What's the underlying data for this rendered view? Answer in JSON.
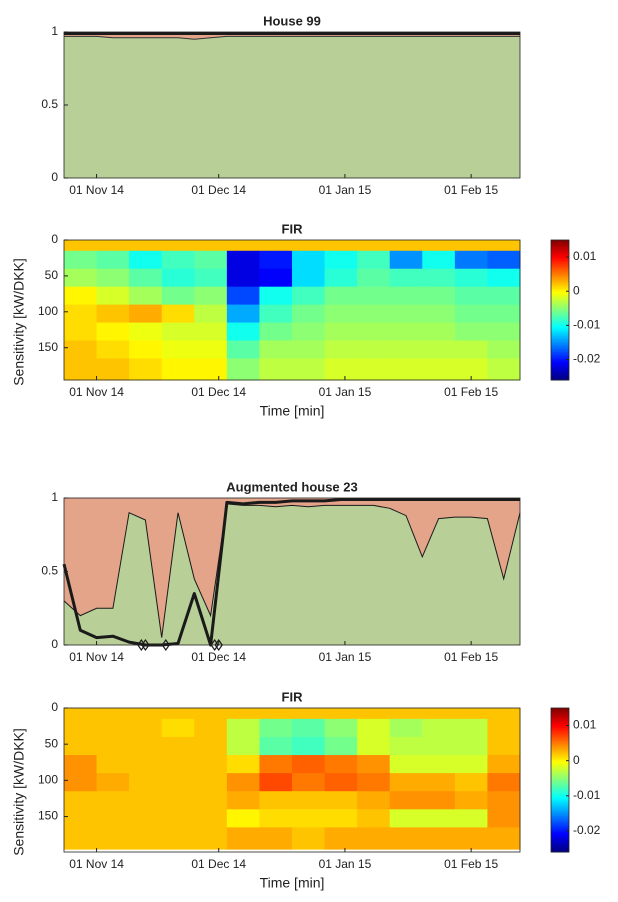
{
  "chart_data": [
    {
      "type": "area",
      "title": "House 99",
      "x": [
        "2014-10-24",
        "2014-10-28",
        "2014-11-01",
        "2014-11-05",
        "2014-11-09",
        "2014-11-13",
        "2014-11-17",
        "2014-11-21",
        "2014-11-25",
        "2014-11-29",
        "2014-12-03",
        "2014-12-07",
        "2014-12-11",
        "2014-12-15",
        "2014-12-19",
        "2014-12-23",
        "2014-12-27",
        "2014-12-31",
        "2015-01-04",
        "2015-01-08",
        "2015-01-12",
        "2015-01-16",
        "2015-01-20",
        "2015-01-24",
        "2015-01-28",
        "2015-02-01",
        "2015-02-05",
        "2015-02-09",
        "2015-02-13"
      ],
      "series": [
        {
          "style": "area",
          "color": "#e3a48a",
          "values": [
            1,
            1,
            1,
            1,
            1,
            1,
            1,
            1,
            1,
            1,
            1,
            1,
            1,
            1,
            1,
            1,
            1,
            1,
            1,
            1,
            1,
            1,
            1,
            1,
            1,
            1,
            1,
            1,
            1
          ]
        },
        {
          "style": "area",
          "color": "#b8cf98",
          "edgecolor": "#333333",
          "values": [
            0.97,
            0.97,
            0.97,
            0.96,
            0.96,
            0.96,
            0.96,
            0.96,
            0.95,
            0.96,
            0.97,
            0.97,
            0.97,
            0.97,
            0.97,
            0.97,
            0.97,
            0.97,
            0.97,
            0.97,
            0.97,
            0.97,
            0.97,
            0.97,
            0.97,
            0.97,
            0.97,
            0.97,
            0.97
          ]
        },
        {
          "style": "line",
          "color": "#1a1a1a",
          "width": 3,
          "values": [
            0.99,
            0.99,
            0.99,
            0.99,
            0.99,
            0.99,
            0.99,
            0.99,
            0.99,
            0.99,
            0.99,
            0.99,
            0.99,
            0.99,
            0.99,
            0.99,
            0.99,
            0.99,
            0.99,
            0.99,
            0.99,
            0.99,
            0.99,
            0.99,
            0.99,
            0.99,
            0.99,
            0.99,
            0.99
          ]
        }
      ],
      "xlim": [
        "2014-10-24",
        "2015-02-13"
      ],
      "xticks": [
        {
          "value": "2014-11-01",
          "label": "01 Nov 14"
        },
        {
          "value": "2014-12-01",
          "label": "01 Dec 14"
        },
        {
          "value": "2015-01-01",
          "label": "01 Jan 15"
        },
        {
          "value": "2015-02-01",
          "label": "01 Feb 15"
        }
      ],
      "ylim": [
        0,
        1
      ],
      "yticks": [
        0,
        0.5,
        1
      ]
    },
    {
      "type": "heatmap",
      "title": "FIR",
      "ylabel": "Sensitivity [kW/DKK]",
      "xlabel": "Time [min]",
      "colormap": "jet",
      "x": [
        "2014-10-24",
        "2014-11-01",
        "2014-11-09",
        "2014-11-17",
        "2014-11-25",
        "2014-12-03",
        "2014-12-11",
        "2014-12-19",
        "2014-12-27",
        "2015-01-04",
        "2015-01-12",
        "2015-01-20",
        "2015-01-28",
        "2015-02-05",
        "2015-02-13"
      ],
      "y": [
        0,
        15,
        40,
        65,
        90,
        115,
        140,
        165,
        195
      ],
      "z": [
        [
          0.002,
          0.002,
          0.002,
          0.002,
          0.002,
          0.002,
          0.002,
          0.002,
          0.002,
          0.002,
          0.002,
          0.002,
          0.002,
          0.002
        ],
        [
          -0.006,
          -0.007,
          -0.01,
          -0.008,
          -0.007,
          -0.022,
          -0.02,
          -0.012,
          -0.01,
          -0.008,
          -0.015,
          -0.01,
          -0.016,
          -0.017
        ],
        [
          -0.004,
          -0.005,
          -0.007,
          -0.009,
          -0.008,
          -0.022,
          -0.021,
          -0.012,
          -0.009,
          -0.007,
          -0.008,
          -0.008,
          -0.009,
          -0.01
        ],
        [
          0,
          -0.002,
          -0.004,
          -0.006,
          -0.005,
          -0.018,
          -0.01,
          -0.008,
          -0.006,
          -0.006,
          -0.006,
          -0.006,
          -0.007,
          -0.007
        ],
        [
          0.001,
          0.002,
          0.003,
          0.001,
          -0.003,
          -0.014,
          -0.008,
          -0.006,
          -0.005,
          -0.005,
          -0.005,
          -0.005,
          -0.006,
          -0.006
        ],
        [
          0.001,
          0,
          -0.001,
          -0.002,
          -0.002,
          -0.01,
          -0.006,
          -0.005,
          -0.004,
          -0.004,
          -0.004,
          -0.004,
          -0.005,
          -0.005
        ],
        [
          0.002,
          0.001,
          0,
          -0.001,
          -0.001,
          -0.007,
          -0.004,
          -0.004,
          -0.003,
          -0.003,
          -0.003,
          -0.003,
          -0.003,
          -0.004
        ],
        [
          0.002,
          0.002,
          0.001,
          0,
          0,
          -0.005,
          -0.003,
          -0.003,
          -0.002,
          -0.002,
          -0.002,
          -0.002,
          -0.002,
          -0.003
        ]
      ],
      "xlim": [
        "2014-10-24",
        "2015-02-13"
      ],
      "xticks": [
        {
          "value": "2014-11-01",
          "label": "01 Nov 14"
        },
        {
          "value": "2014-12-01",
          "label": "01 Dec 14"
        },
        {
          "value": "2015-01-01",
          "label": "01 Jan 15"
        },
        {
          "value": "2015-02-01",
          "label": "01 Feb 15"
        }
      ],
      "ylim": [
        0,
        195
      ],
      "yticks": [
        0,
        50,
        100,
        150
      ],
      "clim": [
        -0.026,
        0.015
      ],
      "cticks": [
        0.01,
        0,
        -0.01,
        -0.02
      ]
    },
    {
      "type": "area",
      "title": "Augmented house 23",
      "x": [
        "2014-10-24",
        "2014-10-28",
        "2014-11-01",
        "2014-11-05",
        "2014-11-09",
        "2014-11-13",
        "2014-11-17",
        "2014-11-21",
        "2014-11-25",
        "2014-11-29",
        "2014-12-03",
        "2014-12-07",
        "2014-12-11",
        "2014-12-15",
        "2014-12-19",
        "2014-12-23",
        "2014-12-27",
        "2014-12-31",
        "2015-01-04",
        "2015-01-08",
        "2015-01-12",
        "2015-01-16",
        "2015-01-20",
        "2015-01-24",
        "2015-01-28",
        "2015-02-01",
        "2015-02-05",
        "2015-02-09",
        "2015-02-13"
      ],
      "series": [
        {
          "style": "area",
          "color": "#e3a48a",
          "values": [
            1,
            1,
            1,
            1,
            1,
            1,
            1,
            1,
            1,
            1,
            1,
            1,
            1,
            1,
            1,
            1,
            1,
            1,
            1,
            1,
            1,
            1,
            1,
            1,
            1,
            1,
            1,
            1,
            1
          ]
        },
        {
          "style": "area",
          "color": "#b8cf98",
          "edgecolor": "#1a1a1a",
          "values": [
            0.3,
            0.2,
            0.25,
            0.25,
            0.9,
            0.85,
            0.05,
            0.9,
            0.45,
            0.2,
            0.96,
            0.95,
            0.95,
            0.94,
            0.95,
            0.94,
            0.95,
            0.95,
            0.95,
            0.95,
            0.93,
            0.88,
            0.6,
            0.86,
            0.87,
            0.87,
            0.86,
            0.45,
            0.9
          ]
        },
        {
          "style": "line",
          "color": "#1a1a1a",
          "width": 3,
          "values": [
            0.55,
            0.1,
            0.05,
            0.06,
            0.02,
            0,
            0,
            0.01,
            0.35,
            0,
            0.97,
            0.96,
            0.97,
            0.97,
            0.98,
            0.98,
            0.98,
            0.99,
            0.99,
            0.99,
            0.99,
            0.99,
            0.99,
            0.99,
            0.99,
            0.99,
            0.99,
            0.99,
            0.99
          ]
        },
        {
          "style": "marker",
          "color": "#1a1a1a",
          "x": [
            "2014-11-12",
            "2014-11-13",
            "2014-11-18",
            "2014-11-30",
            "2014-12-01"
          ],
          "values": [
            0,
            0,
            0,
            0,
            0
          ]
        }
      ],
      "xlim": [
        "2014-10-24",
        "2015-02-13"
      ],
      "xticks": [
        {
          "value": "2014-11-01",
          "label": "01 Nov 14"
        },
        {
          "value": "2014-12-01",
          "label": "01 Dec 14"
        },
        {
          "value": "2015-01-01",
          "label": "01 Jan 15"
        },
        {
          "value": "2015-02-01",
          "label": "01 Feb 15"
        }
      ],
      "ylim": [
        0,
        1
      ],
      "yticks": [
        0,
        0.5,
        1
      ]
    },
    {
      "type": "heatmap",
      "title": "FIR",
      "ylabel": "Sensitivity [kW/DKK]",
      "xlabel": "Time [min]",
      "colormap": "jet",
      "x": [
        "2014-10-24",
        "2014-11-01",
        "2014-11-09",
        "2014-11-17",
        "2014-11-25",
        "2014-12-03",
        "2014-12-11",
        "2014-12-19",
        "2014-12-27",
        "2015-01-04",
        "2015-01-12",
        "2015-01-20",
        "2015-01-28",
        "2015-02-05",
        "2015-02-13"
      ],
      "y": [
        0,
        15,
        40,
        65,
        90,
        115,
        140,
        165,
        195
      ],
      "z": [
        [
          0.002,
          0.002,
          0.002,
          0.002,
          0.002,
          0.002,
          0.002,
          0.002,
          0.002,
          0.002,
          0.002,
          0.002,
          0.002,
          0.002
        ],
        [
          0.002,
          0.002,
          0.002,
          0.001,
          0.002,
          -0.003,
          -0.006,
          -0.007,
          -0.005,
          -0.002,
          -0.004,
          -0.003,
          -0.003,
          0.002
        ],
        [
          0.002,
          0.002,
          0.002,
          0.002,
          0.002,
          -0.003,
          -0.007,
          -0.008,
          -0.006,
          -0.002,
          -0.003,
          -0.003,
          -0.003,
          0.002
        ],
        [
          0.004,
          0.002,
          0.002,
          0.002,
          0.002,
          0.001,
          0.005,
          0.006,
          0.005,
          0.004,
          -0.002,
          -0.002,
          -0.002,
          0.003
        ],
        [
          0.004,
          0.003,
          0.002,
          0.002,
          0.002,
          0.004,
          0.007,
          0.005,
          0.006,
          0.005,
          0.003,
          0.003,
          0.002,
          0.005
        ],
        [
          0.002,
          0.002,
          0.002,
          0.002,
          0.002,
          0.003,
          0.002,
          0.002,
          0.002,
          0.003,
          0.004,
          0.004,
          0.003,
          0.004
        ],
        [
          0.002,
          0.002,
          0.002,
          0.002,
          0.002,
          0,
          0.001,
          0.001,
          0.001,
          0.002,
          -0.002,
          -0.002,
          -0.002,
          0.004
        ],
        [
          0.002,
          0.002,
          0.002,
          0.002,
          0.002,
          0.003,
          0.003,
          0.002,
          0.003,
          0.003,
          0.003,
          0.003,
          0.003,
          0.003
        ]
      ],
      "xlim": [
        "2014-10-24",
        "2015-02-13"
      ],
      "xticks": [
        {
          "value": "2014-11-01",
          "label": "01 Nov 14"
        },
        {
          "value": "2014-12-01",
          "label": "01 Dec 14"
        },
        {
          "value": "2015-01-01",
          "label": "01 Jan 15"
        },
        {
          "value": "2015-02-01",
          "label": "01 Feb 15"
        }
      ],
      "ylim": [
        0,
        199
      ],
      "yticks": [
        0,
        50,
        100,
        150
      ],
      "clim": [
        -0.026,
        0.015
      ],
      "cticks": [
        0.01,
        0,
        -0.01,
        -0.02
      ]
    }
  ]
}
